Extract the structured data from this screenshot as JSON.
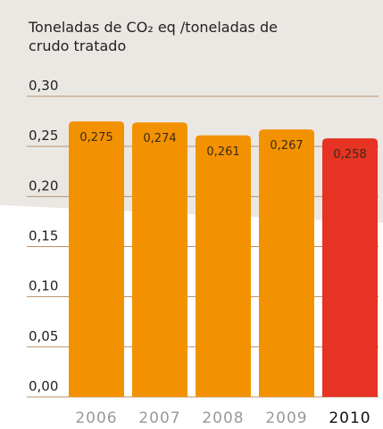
{
  "chart_data": {
    "type": "bar",
    "title": "Toneladas de CO₂ eq /toneladas de crudo tratado",
    "categories": [
      "2006",
      "2007",
      "2008",
      "2009",
      "2010"
    ],
    "values": [
      0.275,
      0.274,
      0.261,
      0.267,
      0.258
    ],
    "value_labels": [
      "0,275",
      "0,274",
      "0,261",
      "0,267",
      "0,258"
    ],
    "colors": [
      "#f39200",
      "#f39200",
      "#f39200",
      "#f39200",
      "#e63323"
    ],
    "ylim": [
      0,
      0.3
    ],
    "yticks": [
      {
        "value": 0,
        "label": "0,00"
      },
      {
        "value": 0.05,
        "label": "0,05"
      },
      {
        "value": 0.1,
        "label": "0,10"
      },
      {
        "value": 0.15,
        "label": "0,15"
      },
      {
        "value": 0.2,
        "label": "0,20"
      },
      {
        "value": 0.25,
        "label": "0,25"
      },
      {
        "value": 0.3,
        "label": "0,30"
      }
    ],
    "grid": true
  }
}
